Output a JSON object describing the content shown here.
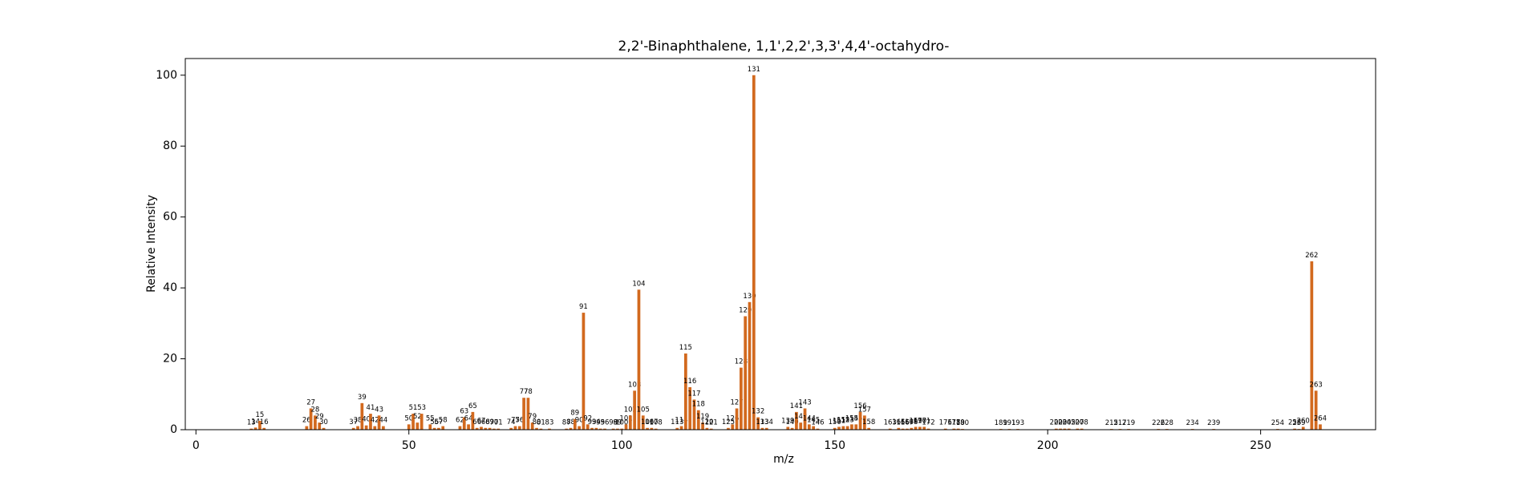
{
  "chart_data": {
    "type": "bar",
    "title": "2,2'-Binaphthalene, 1,1',2,2',3,3',4,4'-octahydro-",
    "xlabel": "m/z",
    "ylabel": "Relative Intensity",
    "color": "#d2691e",
    "xlim": [
      -2.5,
      277
    ],
    "xticks": [
      0,
      50,
      100,
      150,
      200,
      250
    ],
    "ylim": [
      0,
      104.7
    ],
    "yticks": [
      0,
      20,
      40,
      60,
      80,
      100
    ],
    "grid": false,
    "x": [
      13,
      14,
      15,
      16,
      26,
      27,
      28,
      29,
      30,
      37,
      38,
      39,
      40,
      41,
      42,
      43,
      44,
      50,
      51,
      52,
      53,
      55,
      56,
      57,
      58,
      62,
      63,
      64,
      65,
      66,
      67,
      68,
      69,
      70,
      71,
      74,
      75,
      76,
      77,
      78,
      79,
      80,
      81,
      83,
      87,
      88,
      89,
      90,
      91,
      92,
      93,
      94,
      95,
      96,
      98,
      99,
      100,
      101,
      102,
      103,
      104,
      105,
      106,
      107,
      108,
      113,
      114,
      115,
      116,
      117,
      118,
      119,
      120,
      121,
      125,
      126,
      127,
      128,
      129,
      130,
      131,
      132,
      133,
      134,
      139,
      140,
      141,
      142,
      143,
      144,
      145,
      146,
      150,
      151,
      152,
      153,
      154,
      155,
      156,
      157,
      158,
      163,
      165,
      166,
      167,
      168,
      169,
      170,
      171,
      172,
      176,
      178,
      179,
      180,
      189,
      191,
      193,
      202,
      203,
      204,
      205,
      207,
      208,
      215,
      217,
      219,
      226,
      228,
      234,
      239,
      254,
      258,
      259,
      260,
      262,
      263,
      264
    ],
    "values": [
      0.3,
      0.6,
      2.5,
      0.5,
      1,
      6,
      4,
      2,
      0.5,
      0.5,
      1,
      7.5,
      1.2,
      4.5,
      1,
      4,
      1,
      1.5,
      4.5,
      2,
      4.5,
      1.5,
      0.5,
      0.5,
      1,
      1,
      3.5,
      1.5,
      5,
      0.5,
      0.8,
      0.5,
      0.5,
      0.3,
      0.3,
      0.5,
      1,
      1,
      9,
      9,
      2,
      0.5,
      0.3,
      0.3,
      0.3,
      0.5,
      3,
      1,
      33,
      1.5,
      0.5,
      0.5,
      0.3,
      0.3,
      0.3,
      0.3,
      0.3,
      1.5,
      4,
      11,
      39.5,
      4,
      0.5,
      0.5,
      0.3,
      0.5,
      1,
      21.5,
      12,
      8.5,
      5.5,
      2,
      0.5,
      0.3,
      0.5,
      1.5,
      6,
      17.5,
      32,
      36,
      100,
      3.5,
      0.5,
      0.5,
      0.8,
      0.5,
      5,
      2,
      6,
      1.5,
      1,
      0.3,
      0.5,
      0.8,
      1,
      1,
      1.5,
      1.5,
      5,
      4,
      0.5,
      0.3,
      0.5,
      0.3,
      0.3,
      0.5,
      0.8,
      0.8,
      0.8,
      0.3,
      0.3,
      0.3,
      0.3,
      0.2,
      0.2,
      0.2,
      0.2,
      0.3,
      0.3,
      0.3,
      0.3,
      0.3,
      0.3,
      0.2,
      0.2,
      0.2,
      0.2,
      0.2,
      0.2,
      0.2,
      0.2,
      0.3,
      0.2,
      0.8,
      47.5,
      11,
      1.5
    ]
  }
}
